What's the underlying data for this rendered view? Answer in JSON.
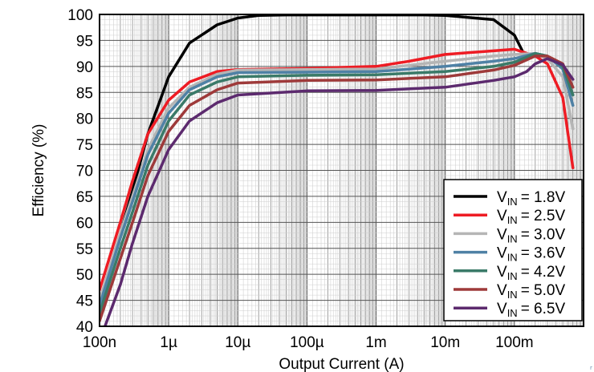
{
  "chart_data": {
    "type": "line",
    "xlabel": "Output Current (A)",
    "ylabel": "Efficiency (%)",
    "x_scale": "log",
    "xlim": [
      1e-07,
      1
    ],
    "ylim": [
      40,
      100
    ],
    "x_tick_values": [
      1e-07,
      1e-06,
      1e-05,
      0.0001,
      0.001,
      0.01,
      0.1
    ],
    "x_tick_labels": [
      "100n",
      "1µ",
      "10µ",
      "100µ",
      "1m",
      "10m",
      "100m"
    ],
    "y_ticks": [
      40,
      45,
      50,
      55,
      60,
      65,
      70,
      75,
      80,
      85,
      90,
      95,
      100
    ],
    "grid": true,
    "legend_position": "bottom-right",
    "series": [
      {
        "name": "1.8V",
        "color": "#000000",
        "x": [
          1e-07,
          3e-07,
          5e-07,
          1e-06,
          2e-06,
          5e-06,
          1e-05,
          2e-05,
          5e-05,
          0.0001,
          0.001,
          0.005,
          0.01,
          0.05,
          0.1,
          0.13
        ],
        "y": [
          44,
          66,
          77,
          88,
          94.5,
          98,
          99.3,
          99.8,
          99.9,
          99.9,
          99.9,
          99.9,
          99.8,
          99,
          96,
          93
        ]
      },
      {
        "name": "2.5V",
        "color": "#ee1c24",
        "x": [
          1e-07,
          2e-07,
          3e-07,
          5e-07,
          1e-06,
          2e-06,
          5e-06,
          1e-05,
          0.0001,
          0.001,
          0.003,
          0.01,
          0.05,
          0.1,
          0.2,
          0.3,
          0.5,
          0.7
        ],
        "y": [
          47,
          60,
          68,
          77,
          83.5,
          87,
          89,
          89.4,
          89.6,
          90,
          91,
          92.3,
          93,
          93.3,
          92,
          90.5,
          84,
          70.5
        ]
      },
      {
        "name": "3.0V",
        "color": "#b5b5b5",
        "x": [
          1e-07,
          2e-07,
          3e-07,
          5e-07,
          1e-06,
          2e-06,
          5e-06,
          1e-05,
          0.0001,
          0.001,
          0.01,
          0.05,
          0.1,
          0.2,
          0.3,
          0.5,
          0.7
        ],
        "y": [
          45,
          58,
          65,
          74,
          82,
          86,
          88.5,
          89.3,
          89.4,
          89.5,
          91,
          92,
          92.3,
          92.5,
          91.5,
          88,
          78
        ]
      },
      {
        "name": "3.6V",
        "color": "#4f81a5",
        "x": [
          1e-07,
          2e-07,
          3e-07,
          5e-07,
          1e-06,
          2e-06,
          5e-06,
          1e-05,
          0.0001,
          0.001,
          0.01,
          0.05,
          0.1,
          0.2,
          0.3,
          0.5,
          0.7
        ],
        "y": [
          44,
          57,
          64,
          73,
          81,
          85.5,
          88,
          88.8,
          88.9,
          89,
          90,
          91,
          91.5,
          92.5,
          92,
          89.5,
          82.5
        ]
      },
      {
        "name": "4.2V",
        "color": "#3a7a68",
        "x": [
          1e-07,
          2e-07,
          3e-07,
          5e-07,
          1e-06,
          2e-06,
          5e-06,
          1e-05,
          0.0001,
          0.001,
          0.01,
          0.05,
          0.1,
          0.2,
          0.3,
          0.5,
          0.7
        ],
        "y": [
          42.5,
          55,
          62,
          71,
          79.5,
          84.5,
          87,
          88,
          88.3,
          88.4,
          89,
          90,
          90.8,
          92.5,
          92,
          90,
          84.5
        ]
      },
      {
        "name": "5.0V",
        "color": "#9e3a3a",
        "x": [
          1e-07,
          2e-07,
          3e-07,
          5e-07,
          1e-06,
          2e-06,
          5e-06,
          1e-05,
          0.0001,
          0.001,
          0.01,
          0.05,
          0.1,
          0.2,
          0.3,
          0.5,
          0.7
        ],
        "y": [
          41,
          53,
          60,
          69,
          77.5,
          82.5,
          85.5,
          86.8,
          87.3,
          87.4,
          88,
          89.3,
          90.2,
          92,
          92,
          90.5,
          86
        ]
      },
      {
        "name": "6.5V",
        "color": "#5c2a6e",
        "x": [
          1.2e-07,
          2e-07,
          3e-07,
          5e-07,
          1e-06,
          2e-06,
          5e-06,
          1e-05,
          0.0001,
          0.001,
          0.01,
          0.05,
          0.1,
          0.15,
          0.2,
          0.3,
          0.5,
          0.7
        ],
        "y": [
          40,
          48,
          56,
          65,
          74,
          79.5,
          83,
          84.5,
          85.3,
          85.4,
          86,
          87.3,
          88,
          89,
          90.5,
          91.5,
          90.3,
          87.5
        ]
      }
    ]
  },
  "legend": {
    "prefix": "V",
    "sub": "IN",
    "items": [
      "= 1.8V",
      "= 2.5V",
      "= 3.0V",
      "= 3.6V",
      "= 4.2V",
      "= 5.0V",
      "= 6.5V"
    ]
  },
  "corner_mark": "r"
}
